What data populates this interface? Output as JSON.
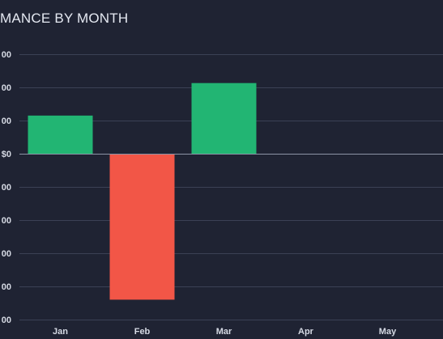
{
  "chart_data": {
    "type": "bar",
    "title": "MANCE BY MONTH",
    "categories": [
      "Jan",
      "Feb",
      "Mar",
      "Apr",
      "May"
    ],
    "values": [
      115,
      -440,
      213,
      0,
      0
    ],
    "y_tick_values": [
      -500,
      -400,
      -300,
      -200,
      -100,
      0,
      100,
      200,
      300
    ],
    "y_tick_labels": [
      "00",
      "00",
      "00",
      "00",
      "00",
      "$0",
      "00",
      "00",
      "00"
    ],
    "ylim": [
      -510,
      310
    ],
    "grid": true,
    "colors": {
      "positive": "#22b573",
      "negative": "#f25647",
      "background": "#1f2333"
    }
  }
}
